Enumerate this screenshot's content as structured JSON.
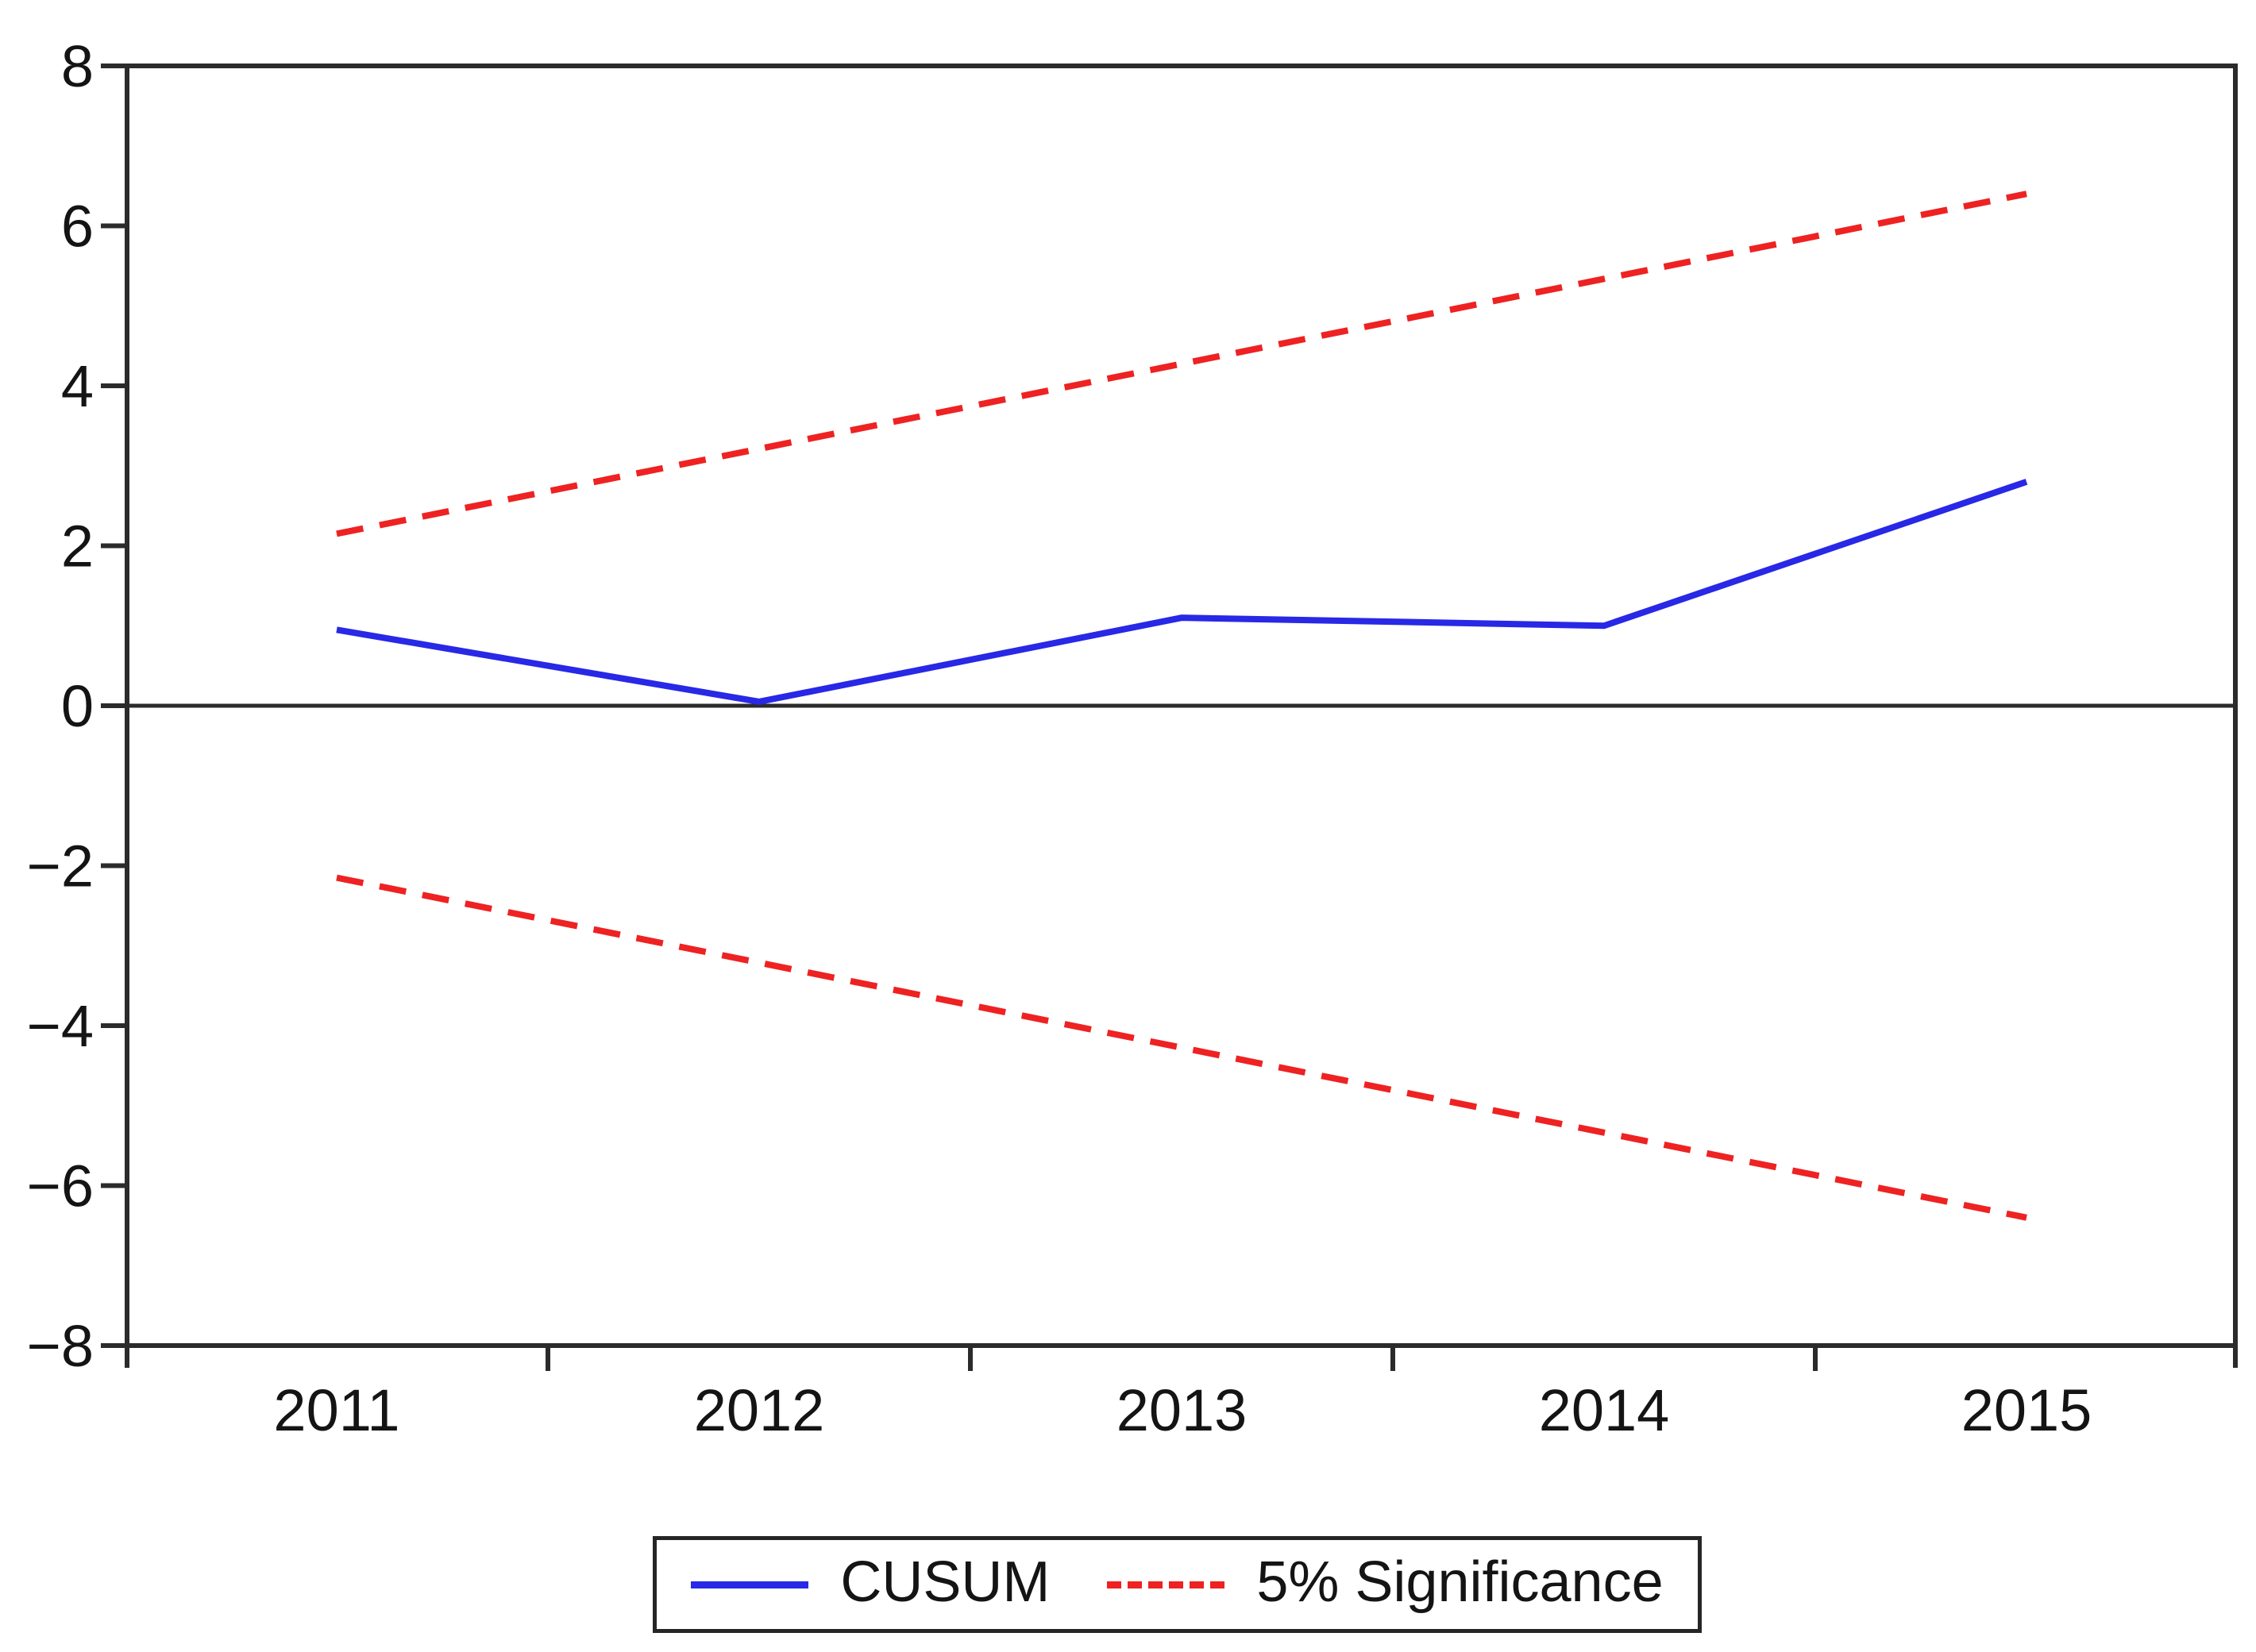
{
  "chart_data": {
    "type": "line",
    "title": "",
    "xlabel": "",
    "ylabel": "",
    "x_tick_labels": [
      "2011",
      "2012",
      "2013",
      "2014",
      "2015"
    ],
    "y_ticks": [
      8,
      6,
      4,
      2,
      0,
      -2,
      -4,
      -6,
      -8
    ],
    "ylim": [
      -8,
      8
    ],
    "xlim_years": [
      2011,
      2015
    ],
    "grid": false,
    "zero_line": 0,
    "series": [
      {
        "name": "CUSUM",
        "style": "solid",
        "color": "#2828e6",
        "x": [
          2011,
          2012,
          2013,
          2014,
          2015
        ],
        "values": [
          0.95,
          0.05,
          1.1,
          1.0,
          2.8
        ]
      },
      {
        "name": "5% Significance (upper bound)",
        "style": "dashed",
        "color": "#ee2222",
        "x": [
          2011,
          2015
        ],
        "values": [
          2.15,
          6.4
        ]
      },
      {
        "name": "5% Significance (lower bound)",
        "style": "dashed",
        "color": "#ee2222",
        "x": [
          2011,
          2015
        ],
        "values": [
          -2.15,
          -6.4
        ]
      }
    ],
    "legend": [
      {
        "label": "CUSUM",
        "style": "solid",
        "color": "#2828e6"
      },
      {
        "label": "5% Significance",
        "style": "dashed",
        "color": "#ee2222"
      }
    ],
    "legend_position": "bottom-center"
  },
  "colors": {
    "axis": "#2b2b2b",
    "text": "#141414",
    "background": "#ffffff",
    "cusum_line": "#2828e6",
    "significance_line": "#ee2222"
  }
}
